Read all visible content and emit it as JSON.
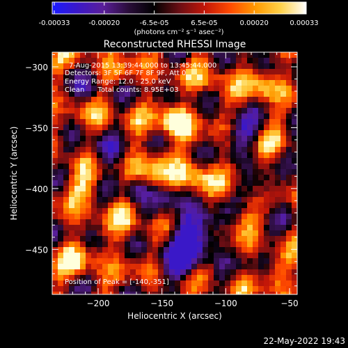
{
  "colorbar": {
    "colors": [
      "#1a1aff",
      "#3b18c8",
      "#5a1e9a",
      "#2a0d3a",
      "#000000",
      "#6a0e14",
      "#c21608",
      "#ff4a00",
      "#ff9a00",
      "#ffd24a",
      "#ffffff"
    ],
    "tick_labels": [
      "-0.00033",
      "-0.00020",
      "-6.5e-05",
      "6.5e-05",
      "0.00020",
      "0.00033"
    ],
    "unit_label": "(photons cm⁻² s⁻¹ asec⁻²)"
  },
  "image": {
    "title": "Reconstructed RHESSI Image",
    "info_lines": [
      "7-Aug-2015 13:39:44.000 to 13:45:44.000",
      "Detectors: 3F 5F 6F 7F 8F 9F, Att 0",
      "Energy Range: 12.0 - 25.0 keV",
      "Clean      Total counts: 8.95E+03"
    ],
    "peak_label": "Position of Peak = [-140,-351]",
    "xlabel": "Heliocentric X (arcsec)",
    "ylabel": "Heliocentric Y (arcsec)",
    "x_ticks": [
      {
        "value": -200,
        "label": "−200"
      },
      {
        "value": -150,
        "label": "−150"
      },
      {
        "value": -100,
        "label": "−100"
      },
      {
        "value": -50,
        "label": "−50"
      }
    ],
    "y_ticks": [
      {
        "value": -300,
        "label": "−300"
      },
      {
        "value": -350,
        "label": "−350"
      },
      {
        "value": -400,
        "label": "−400"
      },
      {
        "value": -450,
        "label": "−450"
      }
    ],
    "xlim": [
      -236,
      -44
    ],
    "ylim": [
      -487,
      -288
    ],
    "peak_position": [
      -140,
      -351
    ]
  },
  "footer": {
    "timestamp": "22-May-2022 19:43"
  }
}
